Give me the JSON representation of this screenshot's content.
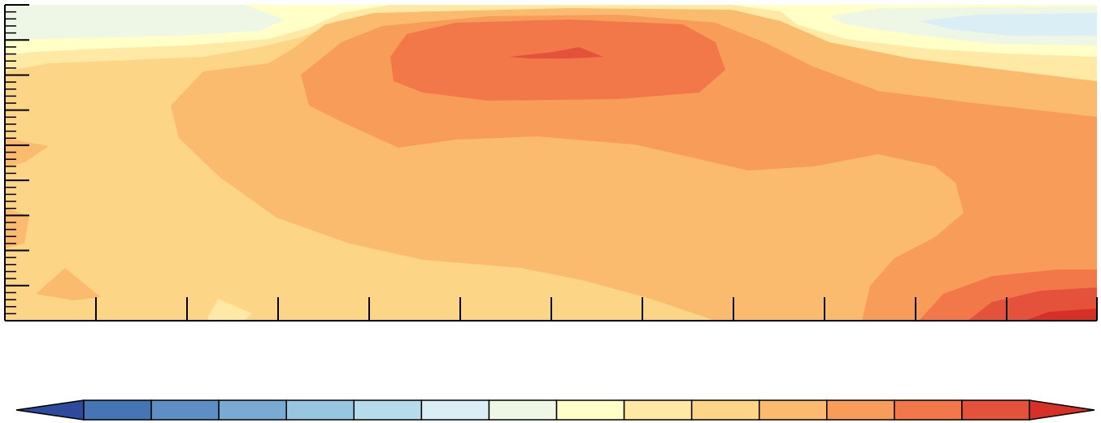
{
  "chart_data": {
    "type": "heatmap",
    "title": "",
    "xlabel": "",
    "ylabel": "",
    "x_tick_labels": [],
    "y_tick_labels": [],
    "grid": false,
    "colorbar": {
      "orientation": "horizontal",
      "extend": "both",
      "tick_labels": [],
      "colors": [
        "#2e4a9c",
        "#4575b4",
        "#5e8fc4",
        "#78aad2",
        "#98c6e0",
        "#b6dcec",
        "#d9eef5",
        "#eef7e6",
        "#ffffc8",
        "#ffe9a4",
        "#fdd587",
        "#fbbb6f",
        "#f89c59",
        "#f37849",
        "#e4523b",
        "#d73027"
      ]
    },
    "levels": [
      {
        "name": "level-12",
        "color": "#eef7e6"
      },
      {
        "name": "level-13",
        "color": "#ffffc8"
      },
      {
        "name": "level-14",
        "color": "#ffe9a4"
      },
      {
        "name": "level-15",
        "color": "#fdd587"
      },
      {
        "name": "level-16",
        "color": "#fbbb6f"
      },
      {
        "name": "level-17",
        "color": "#f89c59"
      },
      {
        "name": "level-18",
        "color": "#f37849"
      },
      {
        "name": "level-19",
        "color": "#e4523b"
      },
      {
        "name": "level-20",
        "color": "#d73027"
      },
      {
        "name": "level-11",
        "color": "#d9eef5"
      }
    ]
  }
}
